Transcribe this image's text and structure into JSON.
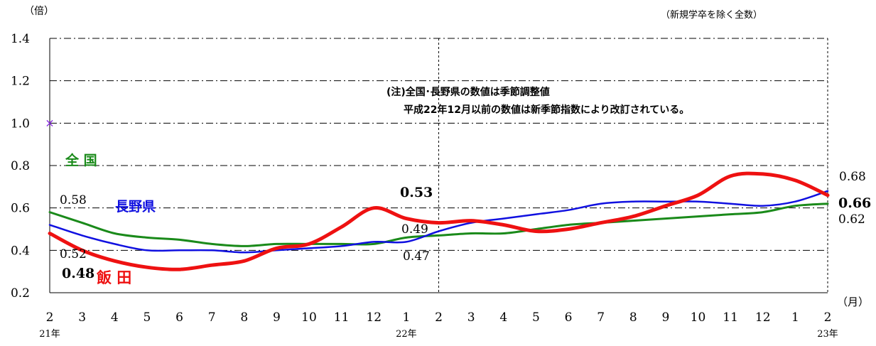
{
  "chart_data": {
    "type": "line",
    "y_unit": "（倍）",
    "note_top_right": "（新規学卒を除く全数）",
    "x_unit": "（月）",
    "annotation": [
      "(注)全国･長野県の数値は季節調整値",
      "平成22年12月以前の数値は新季節指数により改訂されている。"
    ],
    "ylim": [
      0.2,
      1.4
    ],
    "yticks": [
      "0.2",
      "0.4",
      "0.6",
      "0.8",
      "1.0",
      "1.2",
      "1.4"
    ],
    "grid": true,
    "x": [
      "2",
      "3",
      "4",
      "5",
      "6",
      "7",
      "8",
      "9",
      "10",
      "11",
      "12",
      "1",
      "2",
      "3",
      "4",
      "5",
      "6",
      "7",
      "8",
      "9",
      "10",
      "11",
      "12",
      "1",
      "2"
    ],
    "year_labels": [
      {
        "index": 0,
        "text": "21年"
      },
      {
        "index": 11,
        "text": "22年"
      },
      {
        "index": 24,
        "text": "23年"
      }
    ],
    "marker": {
      "index": 0,
      "value": 1.0,
      "symbol": "×"
    },
    "series": [
      {
        "name": "全 国",
        "color": "#1a8a1a",
        "values": [
          0.58,
          0.53,
          0.48,
          0.46,
          0.45,
          0.43,
          0.42,
          0.43,
          0.43,
          0.43,
          0.43,
          0.46,
          0.47,
          0.48,
          0.48,
          0.5,
          0.52,
          0.53,
          0.54,
          0.55,
          0.56,
          0.57,
          0.58,
          0.61,
          0.62
        ],
        "labels": [
          {
            "index": 0,
            "text": "0.58"
          },
          {
            "index": 12,
            "text": "0.47"
          },
          {
            "index": 24,
            "text": "0.62"
          }
        ]
      },
      {
        "name": "長野県",
        "color": "#1010e0",
        "values": [
          0.52,
          0.47,
          0.43,
          0.4,
          0.4,
          0.4,
          0.39,
          0.4,
          0.41,
          0.42,
          0.44,
          0.44,
          0.49,
          0.53,
          0.55,
          0.57,
          0.59,
          0.62,
          0.63,
          0.63,
          0.63,
          0.62,
          0.61,
          0.63,
          0.68
        ],
        "labels": [
          {
            "index": 0,
            "text": "0.52"
          },
          {
            "index": 12,
            "text": "0.49"
          },
          {
            "index": 24,
            "text": "0.68"
          }
        ]
      },
      {
        "name": "飯 田",
        "color": "#ee1111",
        "values": [
          0.48,
          0.4,
          0.35,
          0.32,
          0.31,
          0.33,
          0.35,
          0.41,
          0.43,
          0.51,
          0.6,
          0.55,
          0.53,
          0.54,
          0.52,
          0.49,
          0.5,
          0.53,
          0.56,
          0.61,
          0.66,
          0.75,
          0.76,
          0.73,
          0.66
        ],
        "labels": [
          {
            "index": 0,
            "text": "0.48"
          },
          {
            "index": 12,
            "text": "0.53"
          },
          {
            "index": 24,
            "text": "0.66"
          }
        ]
      }
    ]
  }
}
